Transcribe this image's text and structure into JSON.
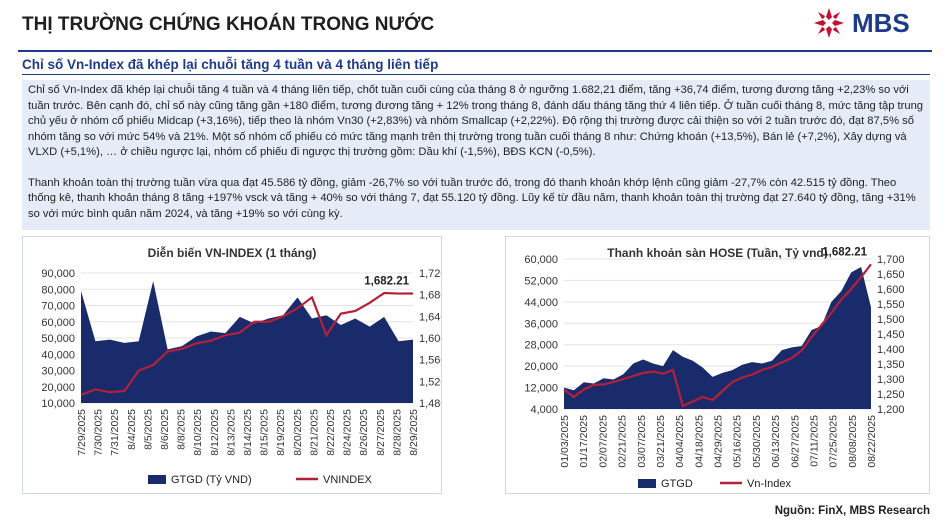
{
  "header": {
    "title": "THỊ TRƯỜNG CHỨNG KHOÁN TRONG NƯỚC",
    "logo_text": "MBS",
    "brand_color": "#1e3a8a",
    "logo_color": "#c8102e"
  },
  "subheading": "Chỉ số Vn-Index đã khép lại chuỗi tăng 4 tuần và 4 tháng liên tiếp",
  "paragraphs": [
    "Chỉ số Vn-Index đã khép lại chuỗi tăng 4 tuần và 4 tháng liên tiếp, chốt tuần cuối cùng của tháng 8 ở ngưỡng 1.682,21 điểm, tăng +36,74 điểm, tương đương tăng +2,23% so với tuần trước. Bên cạnh đó, chỉ số này cũng tăng gần +180 điểm, tương đương tăng + 12% trong tháng 8, đánh dấu tháng tăng thứ 4 liên tiếp. Ở tuần cuối tháng 8, mức tăng tập trung chủ yếu ở nhóm cổ phiếu Midcap (+3,16%), tiếp theo là nhóm Vn30 (+2,83%) và nhóm Smallcap (+2,22%). Độ rộng thị trường được cải thiện so với 2 tuần trước đó, đạt 87,5% số nhóm tăng so với mức 54% và 21%. Một số nhóm cổ phiếu có mức tăng mạnh trên thị trường trong tuần cuối tháng 8 như: Chứng khoán (+13,5%), Bán lẻ (+7,2%), Xây dựng và VLXD (+5,1%), … ở chiều ngược lại, nhóm cổ phiếu đi ngược thị trường gồm: Dầu khí (-1,5%), BĐS KCN (-0,5%).",
    "Thanh khoản toàn thị trường tuần vừa qua đạt 45.586 tỷ đồng, giảm -26,7% so với tuần trước đó, trong đó thanh khoản khớp lệnh cũng giảm -27,7% còn 42.515 tỷ đồng. Theo thống kê, thanh khoản tháng 8 tăng +197% vsck và tăng + 40% so với tháng 7, đạt 55.120 tỷ đồng. Lũy kế từ đầu năm, thanh khoản toàn thị trường đạt 27.640 tỷ đồng, tăng +31% so với mức bình quân năm 2024, và tăng +19% so với cùng kỳ."
  ],
  "source": "Nguồn: FinX, MBS Research",
  "chart_data": [
    {
      "type": "area",
      "title": "Diễn biến VN-INDEX (1 tháng)",
      "colors": {
        "bars": "#1a2b6b",
        "line": "#b3203a"
      },
      "x": [
        "7/29/2025",
        "7/30/2025",
        "7/31/2025",
        "8/1/2025",
        "8/4/2025",
        "8/5/2025",
        "8/6/2025",
        "8/7/2025",
        "8/8/2025",
        "8/11/2025",
        "8/12/2025",
        "8/13/2025",
        "8/14/2025",
        "8/15/2025",
        "8/18/2025",
        "8/19/2025",
        "8/20/2025",
        "8/21/2025",
        "8/22/2025",
        "8/25/2025",
        "8/26/2025",
        "8/27/2025",
        "8/28/2025",
        "8/29/2025"
      ],
      "x_tick_labels": [
        "7/29/2025",
        "7/30/2025",
        "7/31/2025",
        "8/4/2025",
        "8/5/2025",
        "8/6/2025",
        "8/8/2025",
        "8/10/2025",
        "8/12/2025",
        "8/13/2025",
        "8/14/2025",
        "8/15/2025",
        "8/19/2025",
        "8/20/2025",
        "8/21/2025",
        "8/22/2025",
        "8/24/2025",
        "8/26/2025",
        "8/27/2025",
        "8/28/2025",
        "8/29/2025"
      ],
      "series": [
        {
          "name": "GTGD (Tỷ VND)",
          "axis": "left",
          "values": [
            79000,
            48000,
            49000,
            47000,
            48000,
            85000,
            43000,
            45000,
            51000,
            54000,
            53000,
            63000,
            59000,
            62000,
            64000,
            75000,
            62000,
            64000,
            58000,
            62000,
            57000,
            63000,
            48000,
            49000
          ]
        },
        {
          "name": "VNINDEX",
          "axis": "right",
          "values": [
            1495,
            1505,
            1500,
            1502,
            1540,
            1550,
            1575,
            1580,
            1590,
            1595,
            1605,
            1610,
            1630,
            1630,
            1640,
            1655,
            1675,
            1605,
            1645,
            1650,
            1665,
            1683,
            1682,
            1682.21
          ]
        }
      ],
      "y_left": {
        "min": 10000,
        "max": 90000,
        "ticks": [
          "10,000",
          "20,000",
          "30,000",
          "40,000",
          "50,000",
          "60,000",
          "70,000",
          "80,000",
          "90,000"
        ]
      },
      "y_right": {
        "min": 1480,
        "max": 1720,
        "ticks": [
          "1,480",
          "1,520",
          "1,560",
          "1,600",
          "1,640",
          "1,680",
          "1,720"
        ]
      },
      "annotation": "1,682.21",
      "legend": [
        "GTGD (Tỷ VND)",
        "VNINDEX"
      ],
      "legend_position": "bottom"
    },
    {
      "type": "area",
      "title": "Thanh khoản sàn HOSE (Tuần, Tỷ vnd)",
      "colors": {
        "area": "#1a2b6b",
        "line": "#b3203a"
      },
      "x_tick_labels": [
        "01/03/2025",
        "01/17/2025",
        "02/07/2025",
        "02/21/2025",
        "03/07/2025",
        "03/21/2025",
        "04/04/2025",
        "04/18/2025",
        "04/29/2025",
        "05/16/2025",
        "05/30/2025",
        "06/13/2025",
        "06/27/2025",
        "07/11/2025",
        "07/25/2025",
        "08/08/2025",
        "08/22/2025"
      ],
      "series": [
        {
          "name": "GTGD",
          "axis": "left",
          "values": [
            12000,
            11000,
            14000,
            13500,
            15500,
            15000,
            17000,
            21000,
            22500,
            21000,
            20000,
            26000,
            23500,
            22000,
            19500,
            16000,
            17500,
            18500,
            20500,
            21500,
            21000,
            22000,
            26000,
            27000,
            27500,
            33500,
            35000,
            44000,
            48000,
            55000,
            57000,
            42000
          ]
        },
        {
          "name": "Vn-Index",
          "axis": "right",
          "values": [
            1265,
            1240,
            1265,
            1280,
            1282,
            1290,
            1300,
            1310,
            1320,
            1325,
            1318,
            1330,
            1210,
            1225,
            1240,
            1230,
            1260,
            1290,
            1305,
            1315,
            1330,
            1340,
            1355,
            1370,
            1395,
            1440,
            1480,
            1520,
            1565,
            1600,
            1640,
            1682.21
          ]
        }
      ],
      "y_left": {
        "min": 4000,
        "max": 60000,
        "ticks": [
          "4,000",
          "12,000",
          "20,000",
          "28,000",
          "36,000",
          "44,000",
          "52,000",
          "60,000"
        ]
      },
      "y_right": {
        "min": 1200,
        "max": 1700,
        "ticks": [
          "1,200",
          "1,250",
          "1,300",
          "1,350",
          "1,400",
          "1,450",
          "1,500",
          "1,550",
          "1,600",
          "1,650",
          "1,700"
        ]
      },
      "annotation": "1,682.21",
      "legend": [
        "GTGD",
        "Vn-Index"
      ],
      "legend_position": "bottom"
    }
  ]
}
